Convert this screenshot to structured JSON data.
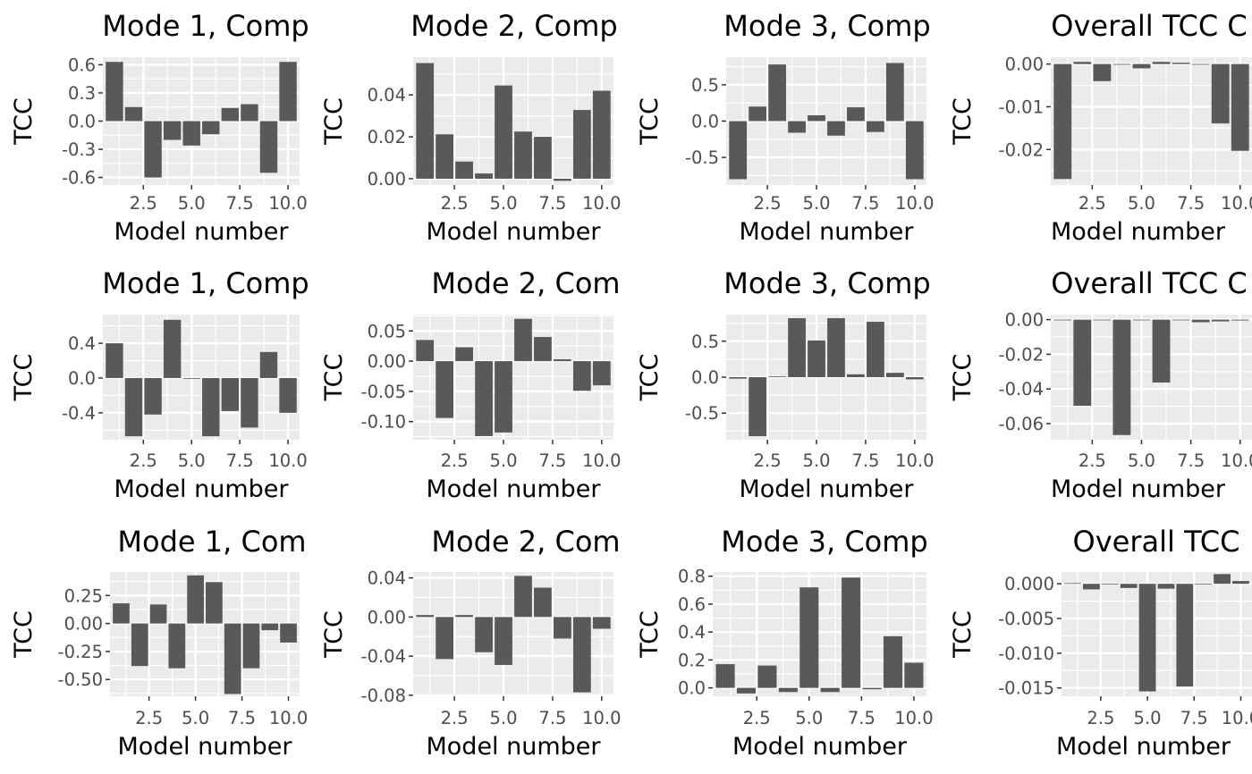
{
  "chart_data": [
    {
      "type": "bar",
      "title": "Mode 1, Comp",
      "xlabel": "Model number",
      "ylabel": "TCC",
      "x": [
        1,
        2,
        3,
        4,
        5,
        6,
        7,
        8,
        9,
        10
      ],
      "values": [
        0.63,
        0.15,
        -0.6,
        -0.2,
        -0.26,
        -0.14,
        0.14,
        0.18,
        -0.55,
        0.63
      ],
      "ylim": [
        -0.68,
        0.68
      ],
      "yticks": [
        0.6,
        0.3,
        0.0,
        -0.3,
        -0.6
      ],
      "ytick_labels": [
        "0.6",
        "0.3",
        "0.0",
        "-0.3",
        "-0.6"
      ],
      "xlim": [
        0.4,
        10.6
      ],
      "xticks": [
        2.5,
        5.0,
        7.5,
        10.0
      ],
      "xtick_labels": [
        "2.5",
        "5.0",
        "7.5",
        "10.0"
      ]
    },
    {
      "type": "bar",
      "title": "Mode 2, Comp",
      "xlabel": "Model number",
      "ylabel": "TCC",
      "x": [
        1,
        2,
        3,
        4,
        5,
        6,
        7,
        8,
        9,
        10
      ],
      "values": [
        0.0552,
        0.0212,
        0.0082,
        0.0025,
        0.0445,
        0.0225,
        0.02,
        -0.001,
        0.0328,
        0.042
      ],
      "ylim": [
        -0.003,
        0.058
      ],
      "yticks": [
        0.04,
        0.02,
        0.0
      ],
      "ytick_labels": [
        "0.04",
        "0.02",
        "0.00"
      ],
      "xlim": [
        0.4,
        10.6
      ],
      "xticks": [
        2.5,
        5.0,
        7.5,
        10.0
      ],
      "xtick_labels": [
        "2.5",
        "5.0",
        "7.5",
        "10.0"
      ]
    },
    {
      "type": "bar",
      "title": "Mode 3, Comp",
      "xlabel": "Model number",
      "ylabel": "TCC",
      "x": [
        1,
        2,
        3,
        4,
        5,
        6,
        7,
        8,
        9,
        10
      ],
      "values": [
        -0.8,
        0.2,
        0.78,
        -0.16,
        0.08,
        -0.2,
        0.19,
        -0.15,
        0.8,
        -0.8
      ],
      "ylim": [
        -0.88,
        0.88
      ],
      "yticks": [
        0.5,
        0.0,
        -0.5
      ],
      "ytick_labels": [
        "0.5",
        "0.0",
        "-0.5"
      ],
      "xlim": [
        0.4,
        10.6
      ],
      "xticks": [
        2.5,
        5.0,
        7.5,
        10.0
      ],
      "xtick_labels": [
        "2.5",
        "5.0",
        "7.5",
        "10.0"
      ]
    },
    {
      "type": "bar",
      "title": "Overall TCC C",
      "xlabel": "Model number",
      "ylabel": "TCC",
      "x": [
        1,
        2,
        3,
        4,
        5,
        6,
        7,
        8,
        9,
        10
      ],
      "values": [
        -0.0269,
        0.0005,
        -0.004,
        0.0,
        -0.001,
        0.0005,
        0.0003,
        0.0,
        -0.0139,
        -0.0203
      ],
      "ylim": [
        -0.0283,
        0.0016
      ],
      "yticks": [
        0.0,
        -0.01,
        -0.02
      ],
      "ytick_labels": [
        "0.00",
        "-0.01",
        "-0.02"
      ],
      "xlim": [
        0.4,
        10.6
      ],
      "xticks": [
        2.5,
        5.0,
        7.5,
        10.0
      ],
      "xtick_labels": [
        "2.5",
        "5.0",
        "7.5",
        "10.0"
      ]
    },
    {
      "type": "bar",
      "title": "Mode 1, Comp",
      "xlabel": "Model number",
      "ylabel": "TCC",
      "x": [
        1,
        2,
        3,
        4,
        5,
        6,
        7,
        8,
        9,
        10
      ],
      "values": [
        0.4,
        -0.67,
        -0.42,
        0.67,
        0.0,
        -0.67,
        -0.38,
        -0.57,
        0.3,
        -0.4
      ],
      "ylim": [
        -0.71,
        0.73
      ],
      "yticks": [
        0.4,
        0.0,
        -0.4
      ],
      "ytick_labels": [
        "0.4",
        "0.0",
        "-0.4"
      ],
      "xlim": [
        0.4,
        10.6
      ],
      "xticks": [
        2.5,
        5.0,
        7.5,
        10.0
      ],
      "xtick_labels": [
        "2.5",
        "5.0",
        "7.5",
        "10.0"
      ]
    },
    {
      "type": "bar",
      "title": "Mode 2, Com",
      "xlabel": "Model number",
      "ylabel": "TCC",
      "x": [
        1,
        2,
        3,
        4,
        5,
        6,
        7,
        8,
        9,
        10
      ],
      "values": [
        0.035,
        -0.094,
        0.023,
        -0.124,
        -0.118,
        0.07,
        0.04,
        0.003,
        -0.049,
        -0.04
      ],
      "ylim": [
        -0.13,
        0.077
      ],
      "yticks": [
        0.05,
        0.0,
        -0.05,
        -0.1
      ],
      "ytick_labels": [
        "0.05",
        "0.00",
        "-0.05",
        "-0.10"
      ],
      "xlim": [
        0.4,
        10.6
      ],
      "xticks": [
        2.5,
        5.0,
        7.5,
        10.0
      ],
      "xtick_labels": [
        "2.5",
        "5.0",
        "7.5",
        "10.0"
      ]
    },
    {
      "type": "bar",
      "title": "Mode 3, Comp",
      "xlabel": "Model number",
      "ylabel": "TCC",
      "x": [
        1,
        2,
        3,
        4,
        5,
        6,
        7,
        8,
        9,
        10
      ],
      "values": [
        -0.02,
        -0.82,
        0.01,
        0.82,
        0.51,
        0.82,
        0.04,
        0.77,
        0.06,
        -0.03
      ],
      "ylim": [
        -0.87,
        0.87
      ],
      "yticks": [
        0.5,
        0.0,
        -0.5
      ],
      "ytick_labels": [
        "0.5",
        "0.0",
        "-0.5"
      ],
      "xlim": [
        0.4,
        10.6
      ],
      "xticks": [
        2.5,
        5.0,
        7.5,
        10.0
      ],
      "xtick_labels": [
        "2.5",
        "5.0",
        "7.5",
        "10.0"
      ]
    },
    {
      "type": "bar",
      "title": "Overall TCC C",
      "xlabel": "Model number",
      "ylabel": "TCC",
      "x": [
        1,
        2,
        3,
        4,
        5,
        6,
        7,
        8,
        9,
        10
      ],
      "values": [
        -0.0002,
        -0.0497,
        0.0,
        -0.0666,
        0.0,
        -0.0363,
        -0.0003,
        -0.0015,
        -0.001,
        -0.0005
      ],
      "ylim": [
        -0.0693,
        0.0029
      ],
      "yticks": [
        0.0,
        -0.02,
        -0.04,
        -0.06
      ],
      "ytick_labels": [
        "0.00",
        "-0.02",
        "-0.04",
        "-0.06"
      ],
      "xlim": [
        0.4,
        10.6
      ],
      "xticks": [
        2.5,
        5.0,
        7.5,
        10.0
      ],
      "xtick_labels": [
        "2.5",
        "5.0",
        "7.5",
        "10.0"
      ]
    },
    {
      "type": "bar",
      "title": "Mode 1, Com",
      "xlabel": "Model number",
      "ylabel": "TCC",
      "x": [
        1,
        2,
        3,
        4,
        5,
        6,
        7,
        8,
        9,
        10
      ],
      "values": [
        0.18,
        -0.38,
        0.17,
        -0.4,
        0.43,
        0.37,
        -0.63,
        -0.4,
        -0.06,
        -0.17
      ],
      "ylim": [
        -0.65,
        0.46
      ],
      "yticks": [
        0.25,
        0.0,
        -0.25,
        -0.5
      ],
      "ytick_labels": [
        "0.25",
        "0.00",
        "-0.25",
        "-0.50"
      ],
      "xlim": [
        0.4,
        10.6
      ],
      "xticks": [
        2.5,
        5.0,
        7.5,
        10.0
      ],
      "xtick_labels": [
        "2.5",
        "5.0",
        "7.5",
        "10.0"
      ]
    },
    {
      "type": "bar",
      "title": "Mode 2, Com",
      "xlabel": "Model number",
      "ylabel": "TCC",
      "x": [
        1,
        2,
        3,
        4,
        5,
        6,
        7,
        8,
        9,
        10
      ],
      "values": [
        0.002,
        -0.043,
        0.002,
        -0.036,
        -0.049,
        0.042,
        0.03,
        -0.022,
        -0.077,
        -0.012
      ],
      "ylim": [
        -0.081,
        0.046
      ],
      "yticks": [
        0.04,
        0.0,
        -0.04,
        -0.08
      ],
      "ytick_labels": [
        "0.04",
        "0.00",
        "-0.04",
        "-0.08"
      ],
      "xlim": [
        0.4,
        10.6
      ],
      "xticks": [
        2.5,
        5.0,
        7.5,
        10.0
      ],
      "xtick_labels": [
        "2.5",
        "5.0",
        "7.5",
        "10.0"
      ]
    },
    {
      "type": "bar",
      "title": "Mode 3, Comp",
      "xlabel": "Model number",
      "ylabel": "TCC",
      "x": [
        1,
        2,
        3,
        4,
        5,
        6,
        7,
        8,
        9,
        10
      ],
      "values": [
        0.17,
        -0.04,
        0.16,
        -0.03,
        0.72,
        -0.03,
        0.79,
        -0.01,
        0.37,
        0.18
      ],
      "ylim": [
        -0.06,
        0.83
      ],
      "yticks": [
        0.8,
        0.6,
        0.4,
        0.2,
        0.0
      ],
      "ytick_labels": [
        "0.8",
        "0.6",
        "0.4",
        "0.2",
        "0.0"
      ],
      "xlim": [
        0.4,
        10.6
      ],
      "xticks": [
        2.5,
        5.0,
        7.5,
        10.0
      ],
      "xtick_labels": [
        "2.5",
        "5.0",
        "7.5",
        "10.0"
      ]
    },
    {
      "type": "bar",
      "title": "Overall TCC",
      "xlabel": "Model number",
      "ylabel": "TCC",
      "x": [
        1,
        2,
        3,
        4,
        5,
        6,
        7,
        8,
        9,
        10
      ],
      "values": [
        0.0001,
        -0.0008,
        0.0,
        -0.0006,
        -0.0155,
        -0.0007,
        -0.0148,
        -0.0001,
        0.0014,
        0.0004
      ],
      "ylim": [
        -0.0162,
        0.0017
      ],
      "yticks": [
        0.0,
        -0.005,
        -0.01,
        -0.015
      ],
      "ytick_labels": [
        "0.000",
        "-0.005",
        "-0.010",
        "-0.015"
      ],
      "xlim": [
        0.4,
        10.6
      ],
      "xticks": [
        2.5,
        5.0,
        7.5,
        10.0
      ],
      "xtick_labels": [
        "2.5",
        "5.0",
        "7.5",
        "10.0"
      ]
    }
  ],
  "style": {
    "panel_background": "#ebebeb",
    "grid_color": "#ffffff",
    "bar_color": "#595959",
    "tick_label_color": "#4d4d4d",
    "tick_color": "#333333",
    "text_color": "#000000"
  }
}
